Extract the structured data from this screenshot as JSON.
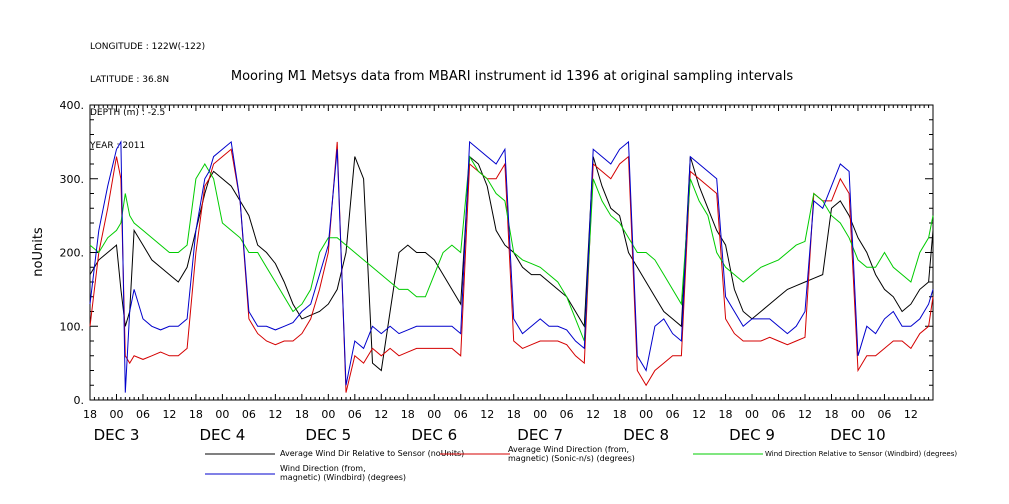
{
  "meta": {
    "lines": [
      "LONGITUDE : 122W(-122)",
      "LATITUDE : 36.8N",
      "DEPTH (m) : -2.5",
      "YEAR : 2011"
    ]
  },
  "chart_data": {
    "type": "line",
    "title": "Mooring M1 Metsys data from MBARI instrument id 1396 at original sampling intervals",
    "ylabel": "noUnits",
    "ylim": [
      0,
      400
    ],
    "yticks": [
      0,
      100,
      200,
      300,
      400
    ],
    "ytick_labels": [
      "0.",
      "100.",
      "200.",
      "300.",
      "400."
    ],
    "xlim_hours": [
      0,
      191
    ],
    "hour_tick_labels": [
      "18",
      "00",
      "06",
      "12",
      "18",
      "00",
      "06",
      "12",
      "18",
      "00",
      "06",
      "12",
      "18",
      "00",
      "06",
      "12",
      "18",
      "00",
      "06",
      "12",
      "18",
      "00",
      "06",
      "12",
      "18",
      "00",
      "06",
      "12",
      "18",
      "00",
      "06",
      "12"
    ],
    "day_labels": [
      {
        "label": "DEC  3",
        "hour": 6
      },
      {
        "label": "DEC  4",
        "hour": 30
      },
      {
        "label": "DEC  5",
        "hour": 54
      },
      {
        "label": "DEC  6",
        "hour": 78
      },
      {
        "label": "DEC  7",
        "hour": 102
      },
      {
        "label": "DEC  8",
        "hour": 126
      },
      {
        "label": "DEC  9",
        "hour": 150
      },
      {
        "label": "DEC 10",
        "hour": 174
      }
    ],
    "series": [
      {
        "name": "Average Wind Dir Relative to Sensor (noUnits)",
        "color": "#000000",
        "x": [
          0,
          2,
          4,
          6,
          7,
          8,
          9,
          10,
          12,
          14,
          16,
          18,
          20,
          22,
          24,
          26,
          27,
          28,
          30,
          32,
          34,
          36,
          38,
          40,
          42,
          44,
          46,
          48,
          50,
          52,
          54,
          56,
          58,
          60,
          62,
          64,
          66,
          68,
          70,
          72,
          74,
          76,
          78,
          80,
          82,
          84,
          86,
          88,
          90,
          92,
          94,
          96,
          98,
          100,
          102,
          104,
          106,
          108,
          110,
          112,
          114,
          116,
          118,
          120,
          122,
          124,
          126,
          128,
          130,
          132,
          134,
          136,
          138,
          140,
          142,
          144,
          146,
          148,
          150,
          152,
          154,
          156,
          158,
          160,
          162,
          164,
          166,
          168,
          170,
          172,
          174,
          176,
          178,
          180,
          182,
          184,
          186,
          188,
          190,
          191
        ],
        "y": [
          170,
          190,
          200,
          210,
          150,
          100,
          120,
          230,
          210,
          190,
          180,
          170,
          160,
          180,
          230,
          280,
          300,
          310,
          300,
          290,
          270,
          250,
          210,
          200,
          185,
          160,
          130,
          110,
          115,
          120,
          130,
          150,
          200,
          330,
          300,
          50,
          40,
          120,
          200,
          210,
          200,
          200,
          190,
          170,
          150,
          130,
          330,
          320,
          290,
          230,
          210,
          200,
          180,
          170,
          170,
          160,
          150,
          140,
          120,
          100,
          330,
          290,
          260,
          250,
          200,
          180,
          160,
          140,
          120,
          110,
          100,
          330,
          290,
          260,
          230,
          210,
          150,
          120,
          110,
          120,
          130,
          140,
          150,
          155,
          160,
          165,
          170,
          260,
          270,
          250,
          220,
          200,
          170,
          150,
          140,
          120,
          130,
          150,
          160,
          230
        ]
      },
      {
        "name": "Average Wind Direction (from, magnetic) (Sonic-n/s) (degrees)",
        "color": "#d40000",
        "x": [
          0,
          2,
          4,
          6,
          7,
          8,
          9,
          10,
          12,
          14,
          16,
          18,
          20,
          22,
          24,
          26,
          27,
          28,
          30,
          32,
          34,
          36,
          38,
          40,
          42,
          44,
          46,
          48,
          50,
          52,
          54,
          56,
          58,
          60,
          62,
          64,
          66,
          68,
          70,
          72,
          74,
          76,
          78,
          80,
          82,
          84,
          86,
          88,
          90,
          92,
          94,
          96,
          98,
          100,
          102,
          104,
          106,
          108,
          110,
          112,
          114,
          116,
          118,
          120,
          122,
          124,
          126,
          128,
          130,
          132,
          134,
          136,
          138,
          140,
          142,
          144,
          146,
          148,
          150,
          152,
          154,
          156,
          158,
          160,
          162,
          164,
          166,
          168,
          170,
          172,
          174,
          176,
          178,
          180,
          182,
          184,
          186,
          188,
          190,
          191
        ],
        "y": [
          100,
          200,
          260,
          330,
          300,
          60,
          50,
          60,
          55,
          60,
          65,
          60,
          60,
          70,
          200,
          290,
          300,
          320,
          330,
          340,
          270,
          110,
          90,
          80,
          75,
          80,
          80,
          90,
          110,
          150,
          200,
          350,
          10,
          60,
          50,
          70,
          60,
          70,
          60,
          65,
          70,
          70,
          70,
          70,
          70,
          60,
          320,
          310,
          300,
          300,
          320,
          80,
          70,
          75,
          80,
          80,
          80,
          75,
          60,
          50,
          320,
          310,
          300,
          320,
          330,
          40,
          20,
          40,
          50,
          60,
          60,
          310,
          300,
          290,
          280,
          110,
          90,
          80,
          80,
          80,
          85,
          80,
          75,
          80,
          85,
          280,
          270,
          270,
          300,
          280,
          40,
          60,
          60,
          70,
          80,
          80,
          70,
          90,
          100,
          140
        ]
      },
      {
        "name": "Wind Direction Relative to Sensor (Windbird) (degrees)",
        "color": "#00cc00",
        "x": [
          0,
          2,
          4,
          6,
          7,
          8,
          9,
          10,
          12,
          14,
          16,
          18,
          20,
          22,
          24,
          26,
          27,
          28,
          30,
          32,
          34,
          36,
          38,
          40,
          42,
          44,
          46,
          48,
          50,
          52,
          54,
          56,
          58,
          60,
          62,
          64,
          66,
          68,
          70,
          72,
          74,
          76,
          78,
          80,
          82,
          84,
          86,
          88,
          90,
          92,
          94,
          96,
          98,
          100,
          102,
          104,
          106,
          108,
          110,
          112,
          114,
          116,
          118,
          120,
          122,
          124,
          126,
          128,
          130,
          132,
          134,
          136,
          138,
          140,
          142,
          144,
          146,
          148,
          150,
          152,
          154,
          156,
          158,
          160,
          162,
          164,
          166,
          168,
          170,
          172,
          174,
          176,
          178,
          180,
          182,
          184,
          186,
          188,
          190,
          191
        ],
        "y": [
          210,
          200,
          220,
          230,
          240,
          280,
          250,
          240,
          230,
          220,
          210,
          200,
          200,
          210,
          300,
          320,
          310,
          300,
          240,
          230,
          220,
          200,
          200,
          180,
          160,
          140,
          120,
          130,
          150,
          200,
          220,
          220,
          210,
          200,
          190,
          180,
          170,
          160,
          150,
          150,
          140,
          140,
          170,
          200,
          210,
          200,
          330,
          310,
          300,
          280,
          270,
          200,
          190,
          185,
          180,
          170,
          160,
          140,
          110,
          80,
          300,
          270,
          250,
          240,
          220,
          200,
          200,
          190,
          170,
          150,
          130,
          300,
          270,
          250,
          200,
          180,
          170,
          160,
          170,
          180,
          185,
          190,
          200,
          210,
          215,
          280,
          270,
          250,
          240,
          220,
          190,
          180,
          180,
          200,
          180,
          170,
          160,
          200,
          220,
          250
        ]
      },
      {
        "name": "Wind Direction (from, magnetic) (Windbird) (degrees)",
        "color": "#0000cc",
        "x": [
          0,
          2,
          4,
          6,
          7,
          8,
          9,
          10,
          12,
          14,
          16,
          18,
          20,
          22,
          24,
          26,
          27,
          28,
          30,
          32,
          34,
          36,
          38,
          40,
          42,
          44,
          46,
          48,
          50,
          52,
          54,
          56,
          58,
          60,
          62,
          64,
          66,
          68,
          70,
          72,
          74,
          76,
          78,
          80,
          82,
          84,
          86,
          88,
          90,
          92,
          94,
          96,
          98,
          100,
          102,
          104,
          106,
          108,
          110,
          112,
          114,
          116,
          118,
          120,
          122,
          124,
          126,
          128,
          130,
          132,
          134,
          136,
          138,
          140,
          142,
          144,
          146,
          148,
          150,
          152,
          154,
          156,
          158,
          160,
          162,
          164,
          166,
          168,
          170,
          172,
          174,
          176,
          178,
          180,
          182,
          184,
          186,
          188,
          190,
          191
        ],
        "y": [
          130,
          230,
          290,
          340,
          350,
          10,
          120,
          150,
          110,
          100,
          95,
          100,
          100,
          110,
          230,
          300,
          310,
          330,
          340,
          350,
          270,
          120,
          100,
          100,
          95,
          100,
          105,
          120,
          130,
          170,
          210,
          340,
          20,
          80,
          70,
          100,
          90,
          100,
          90,
          95,
          100,
          100,
          100,
          100,
          100,
          90,
          350,
          340,
          330,
          320,
          340,
          110,
          90,
          100,
          110,
          100,
          100,
          95,
          80,
          70,
          340,
          330,
          320,
          340,
          350,
          60,
          40,
          100,
          110,
          90,
          80,
          330,
          320,
          310,
          300,
          140,
          120,
          100,
          110,
          110,
          110,
          100,
          90,
          100,
          120,
          270,
          260,
          290,
          320,
          310,
          60,
          100,
          90,
          110,
          120,
          100,
          100,
          110,
          130,
          150
        ]
      }
    ]
  }
}
